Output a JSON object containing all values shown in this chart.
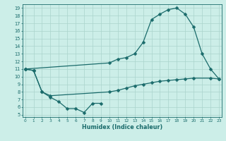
{
  "xlabel": "Humidex (Indice chaleur)",
  "bg_color": "#cceee8",
  "grid_color": "#aad4cc",
  "line_color": "#1a6b6b",
  "xlim_min": -0.3,
  "xlim_max": 23.3,
  "ylim_min": 4.7,
  "ylim_max": 19.5,
  "xticks": [
    0,
    1,
    2,
    3,
    4,
    5,
    6,
    7,
    8,
    9,
    10,
    11,
    12,
    13,
    14,
    15,
    16,
    17,
    18,
    19,
    20,
    21,
    22,
    23
  ],
  "yticks": [
    5,
    6,
    7,
    8,
    9,
    10,
    11,
    12,
    13,
    14,
    15,
    16,
    17,
    18,
    19
  ],
  "curve1_x": [
    0,
    10,
    11,
    12,
    13,
    14,
    15,
    16,
    17,
    18,
    19,
    20,
    21,
    22,
    23
  ],
  "curve1_y": [
    11,
    11.8,
    12.3,
    12.5,
    13.0,
    14.5,
    17.5,
    18.2,
    18.8,
    19.0,
    18.2,
    16.5,
    13.0,
    11.0,
    9.7
  ],
  "curve2_x": [
    0,
    1,
    2,
    3,
    10,
    11,
    12,
    13,
    14,
    15,
    16,
    17,
    18,
    19,
    20,
    22,
    23
  ],
  "curve2_y": [
    11,
    10.8,
    8.0,
    7.5,
    8.0,
    8.2,
    8.5,
    8.8,
    9.0,
    9.2,
    9.4,
    9.5,
    9.6,
    9.7,
    9.8,
    9.8,
    9.7
  ],
  "curve3_x": [
    0,
    1,
    2,
    3,
    4,
    5,
    6,
    7,
    8,
    9
  ],
  "curve3_y": [
    11,
    10.8,
    8.0,
    7.3,
    6.7,
    5.8,
    5.8,
    5.3,
    6.5,
    6.5
  ],
  "markersize": 2.5,
  "linewidth": 0.9
}
